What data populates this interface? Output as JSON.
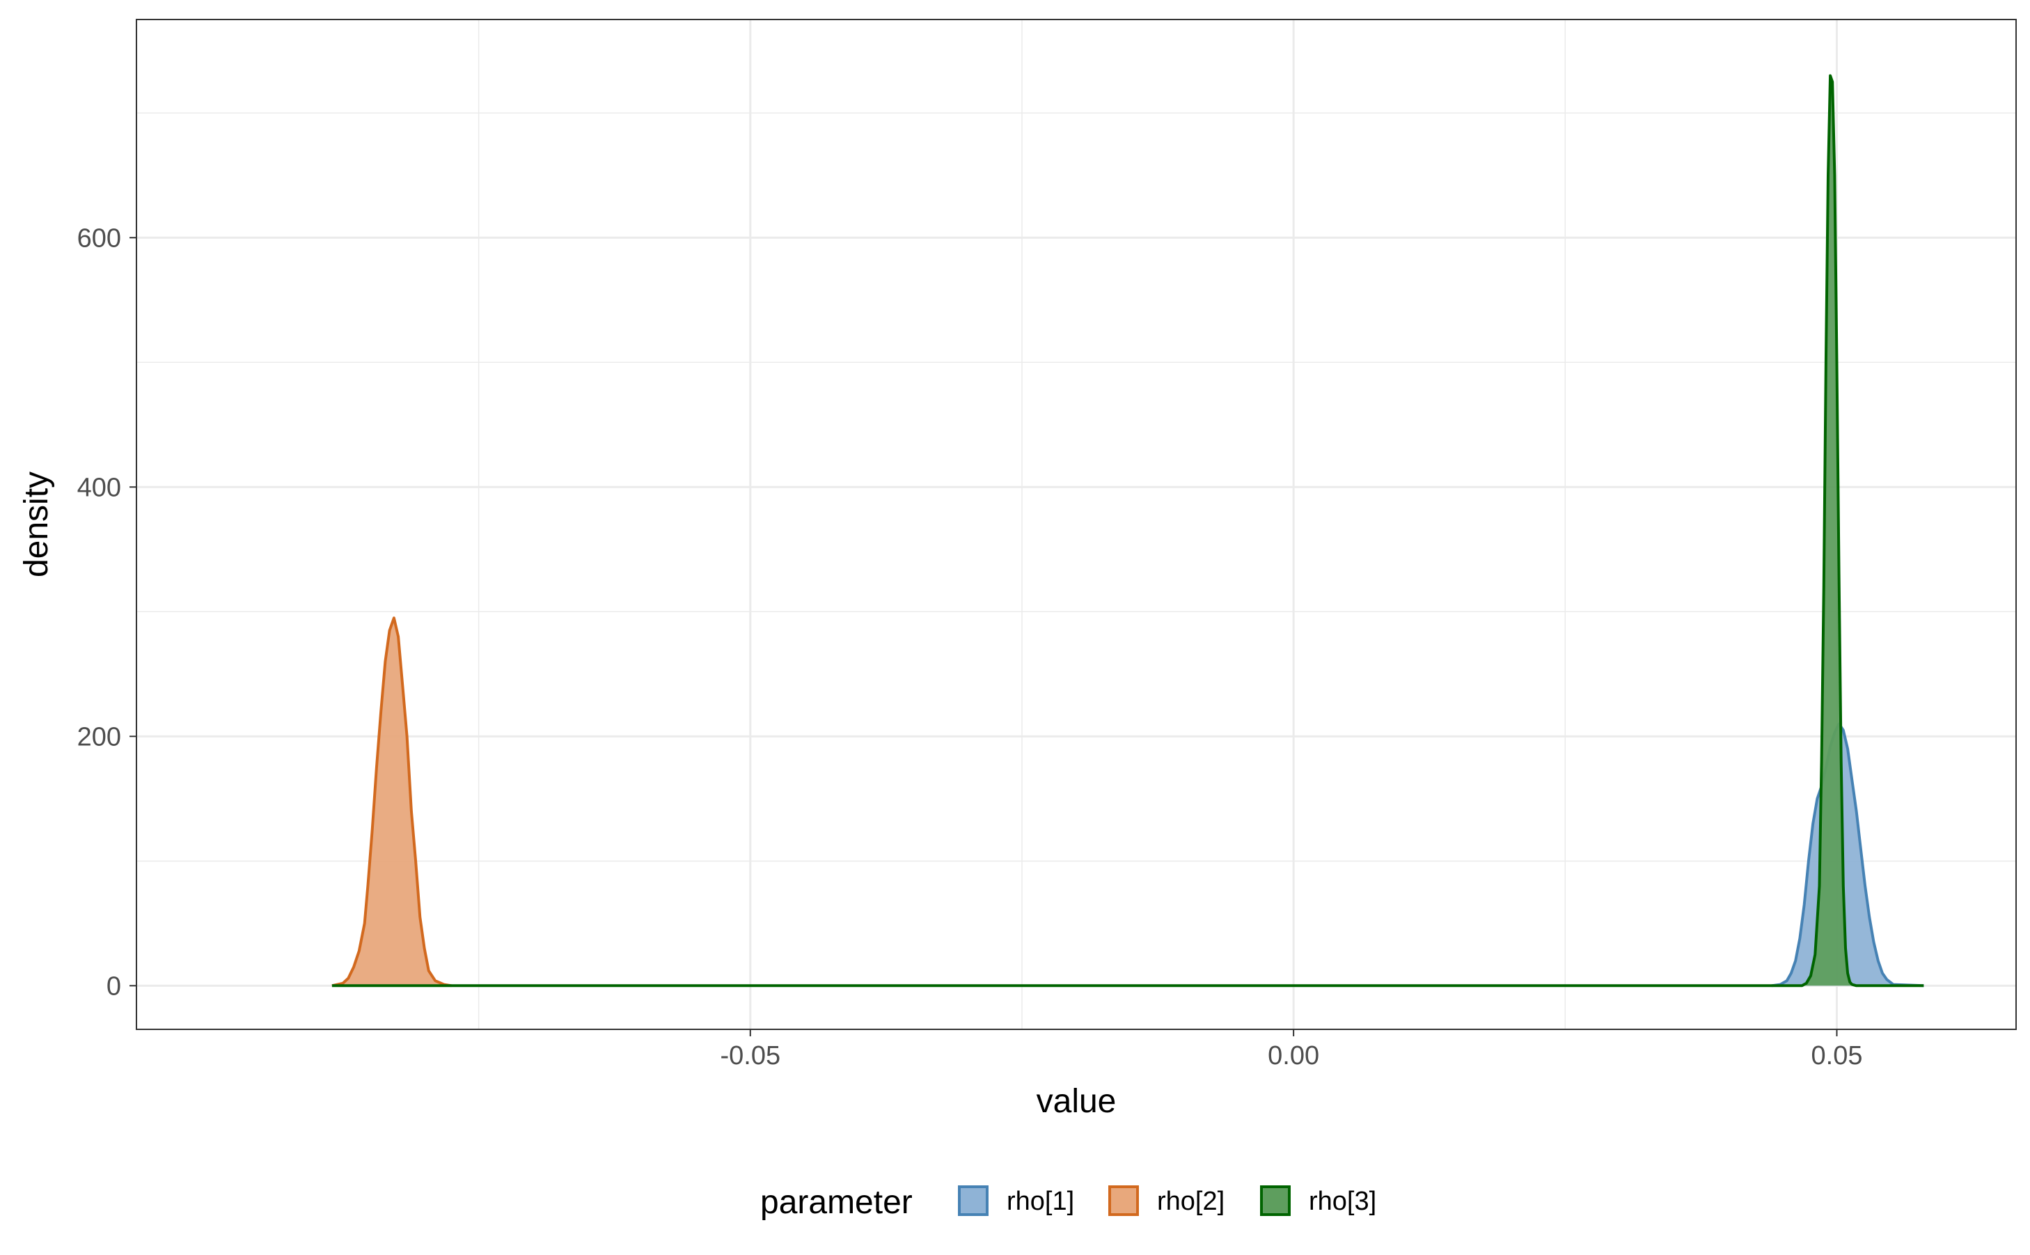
{
  "chart_data": {
    "type": "area",
    "chart_kind": "density",
    "title": "",
    "xlabel": "value",
    "ylabel": "density",
    "xlim": [
      -0.1065,
      0.0665
    ],
    "ylim": [
      -35,
      775
    ],
    "x_ticks": [
      -0.05,
      0.0,
      0.05
    ],
    "x_tick_labels": [
      "-0.05",
      "0.00",
      "0.05"
    ],
    "y_ticks": [
      0,
      200,
      400,
      600
    ],
    "y_tick_labels": [
      "0",
      "200",
      "400",
      "600"
    ],
    "grid": true,
    "legend": {
      "title": "parameter",
      "position": "bottom"
    },
    "series": [
      {
        "name": "rho[1]",
        "line_color": "#4682B4",
        "fill_color": "#8FB3D6",
        "x": [
          0.044,
          0.0448,
          0.0454,
          0.0458,
          0.0462,
          0.0466,
          0.047,
          0.0474,
          0.0478,
          0.0482,
          0.0486,
          0.049,
          0.0494,
          0.0498,
          0.0502,
          0.0506,
          0.051,
          0.0514,
          0.0518,
          0.0522,
          0.0526,
          0.053,
          0.0534,
          0.0538,
          0.0542,
          0.0546,
          0.0552,
          0.058
        ],
        "values": [
          0,
          1,
          4,
          10,
          20,
          38,
          65,
          100,
          130,
          150,
          160,
          175,
          192,
          203,
          210,
          205,
          190,
          165,
          140,
          110,
          80,
          55,
          35,
          20,
          10,
          5,
          1,
          0
        ]
      },
      {
        "name": "rho[2]",
        "line_color": "#D2691E",
        "fill_color": "#E8A87C",
        "x": [
          -0.0885,
          -0.0875,
          -0.087,
          -0.0865,
          -0.086,
          -0.0855,
          -0.0852,
          -0.0848,
          -0.0844,
          -0.084,
          -0.0836,
          -0.0832,
          -0.0828,
          -0.0824,
          -0.082,
          -0.0816,
          -0.0812,
          -0.0808,
          -0.0804,
          -0.08,
          -0.0796,
          -0.079,
          -0.0782,
          -0.0775
        ],
        "values": [
          0,
          2,
          6,
          15,
          28,
          50,
          80,
          125,
          175,
          220,
          260,
          285,
          295,
          280,
          240,
          200,
          140,
          100,
          55,
          30,
          12,
          4,
          1,
          0
        ]
      },
      {
        "name": "rho[3]",
        "line_color": "#006400",
        "fill_color": "#5E9E5E",
        "x": [
          -0.0885,
          0.0468,
          0.0472,
          0.0476,
          0.048,
          0.0484,
          0.0486,
          0.0488,
          0.049,
          0.0492,
          0.0494,
          0.0496,
          0.0498,
          0.05,
          0.0502,
          0.0504,
          0.0506,
          0.0508,
          0.051,
          0.0512,
          0.0514,
          0.0518,
          0.0524,
          0.058
        ],
        "values": [
          0,
          0,
          2,
          8,
          25,
          80,
          180,
          320,
          500,
          650,
          730,
          725,
          650,
          500,
          330,
          180,
          80,
          30,
          10,
          3,
          1,
          0,
          0,
          0
        ]
      }
    ]
  }
}
